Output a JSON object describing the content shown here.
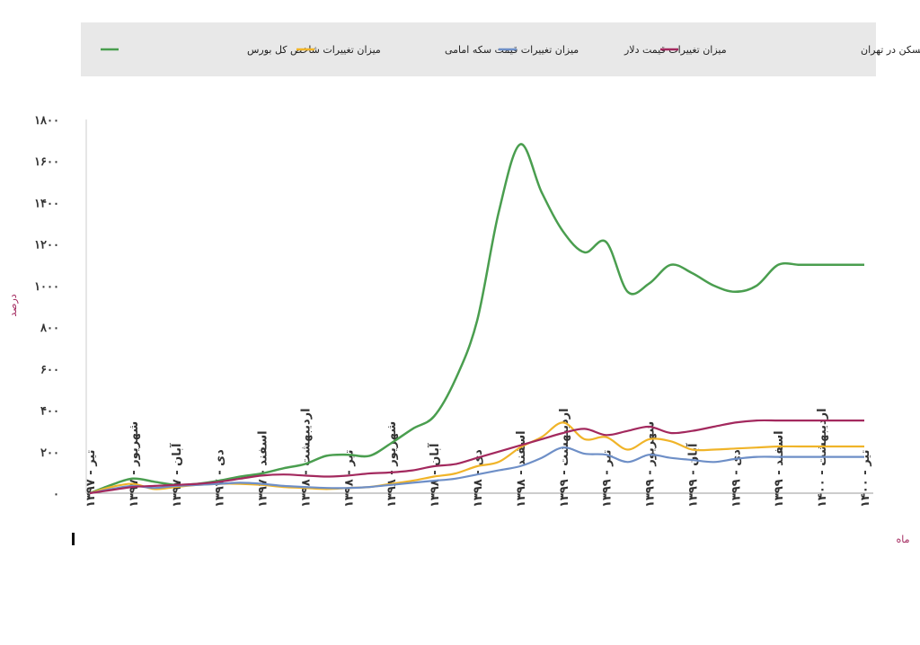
{
  "chart_data": {
    "type": "line",
    "title": "",
    "xlabel": "ماه",
    "ylabel": "درصد",
    "ylim": [
      0,
      1800
    ],
    "yticks": [
      "۰",
      "۲۰۰",
      "۴۰۰",
      "۶۰۰",
      "۸۰۰",
      "۱۰۰۰",
      "۱۲۰۰",
      "۱۴۰۰",
      "۱۶۰۰",
      "۱۸۰۰"
    ],
    "grid": false,
    "legend_position": "top",
    "x_labels": [
      "تیر - ۱۳۹۷",
      "شهریور - ۱۳۹۷",
      "آبان - ۱۳۹۷",
      "دی - ۱۳۹۷",
      "اسفند - ۱۳۹۷",
      "اردیبهشت - ۱۳۹۸",
      "تیر - ۱۳۹۸",
      "شهریور - ۱۳۹۸",
      "آبان - ۱۳۹۸",
      "دی - ۱۳۹۸",
      "اسفند - ۱۳۹۸",
      "اردیبهشت - ۱۳۹۹",
      "تیر - ۱۳۹۹",
      "شهریور - ۱۳۹۹",
      "آبان - ۱۳۹۹",
      "دی - ۱۳۹۹",
      "اسفند - ۱۳۹۹",
      "اردیبهشت - ۱۴۰۰",
      "تیر - ۱۴۰۰"
    ],
    "x_month_index": [
      0,
      2,
      4,
      6,
      8,
      10,
      12,
      14,
      16,
      18,
      20,
      22,
      24,
      26,
      28,
      30,
      32,
      34,
      36
    ],
    "series": [
      {
        "name": "میزان تغییرات شاخص کل بورس",
        "color": "#4a9e4f",
        "x": [
          0,
          1,
          2,
          3,
          4,
          5,
          6,
          7,
          8,
          9,
          10,
          11,
          12,
          13,
          14,
          15,
          16,
          17,
          18,
          19,
          20,
          21,
          22,
          23,
          24,
          25,
          26,
          27,
          28,
          29,
          30,
          31,
          32,
          33,
          34,
          35,
          36
        ],
        "values": [
          0,
          40,
          70,
          55,
          40,
          45,
          60,
          80,
          95,
          120,
          140,
          180,
          185,
          180,
          240,
          310,
          370,
          550,
          830,
          1350,
          1680,
          1450,
          1260,
          1160,
          1210,
          970,
          1010,
          1100,
          1060,
          1000,
          970,
          1000,
          1100,
          1100,
          1100,
          1100,
          1100
        ]
      },
      {
        "name": "میزان تغییرات قیمت سکه امامی",
        "color": "#f0b429",
        "x": [
          0,
          1,
          2,
          3,
          4,
          5,
          6,
          7,
          8,
          9,
          10,
          11,
          12,
          13,
          14,
          15,
          16,
          17,
          18,
          19,
          20,
          21,
          22,
          23,
          24,
          25,
          26,
          27,
          28,
          29,
          30,
          31,
          32,
          33,
          34,
          35,
          36
        ],
        "values": [
          0,
          30,
          45,
          20,
          30,
          40,
          45,
          45,
          40,
          30,
          25,
          20,
          25,
          30,
          45,
          60,
          80,
          95,
          130,
          150,
          220,
          270,
          340,
          260,
          270,
          210,
          260,
          250,
          210,
          210,
          215,
          220,
          225,
          225,
          225,
          225,
          225
        ]
      },
      {
        "name": "میزان تغییرات قیمت دلار",
        "color": "#6e8fc7",
        "x": [
          0,
          1,
          2,
          3,
          4,
          5,
          6,
          7,
          8,
          9,
          10,
          11,
          12,
          13,
          14,
          15,
          16,
          17,
          18,
          19,
          20,
          21,
          22,
          23,
          24,
          25,
          26,
          27,
          28,
          29,
          30,
          31,
          32,
          33,
          34,
          35,
          36
        ],
        "values": [
          0,
          20,
          35,
          25,
          35,
          40,
          45,
          50,
          45,
          35,
          30,
          25,
          25,
          30,
          40,
          50,
          60,
          70,
          90,
          110,
          130,
          170,
          220,
          190,
          185,
          150,
          185,
          170,
          160,
          150,
          165,
          175,
          175,
          175,
          175,
          175,
          175
        ]
      },
      {
        "name": "میزان تغییرات شاخص قیمت مسکن در تهران",
        "color": "#a3295e",
        "x": [
          0,
          1,
          2,
          3,
          4,
          5,
          6,
          7,
          8,
          9,
          10,
          11,
          12,
          13,
          14,
          15,
          16,
          17,
          18,
          19,
          20,
          21,
          22,
          23,
          24,
          25,
          26,
          27,
          28,
          29,
          30,
          31,
          32,
          33,
          34,
          35,
          36
        ],
        "values": [
          0,
          15,
          30,
          35,
          40,
          45,
          55,
          70,
          85,
          90,
          85,
          80,
          85,
          95,
          100,
          110,
          130,
          140,
          170,
          200,
          230,
          260,
          290,
          310,
          280,
          300,
          320,
          290,
          300,
          320,
          340,
          350,
          350,
          350,
          350,
          350,
          350
        ]
      }
    ]
  }
}
